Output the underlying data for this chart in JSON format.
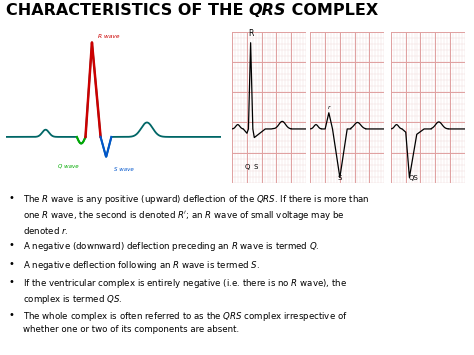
{
  "title_parts": [
    {
      "text": "CHARACTERISTICS OF THE ",
      "bold": true,
      "italic": false
    },
    {
      "text": "QRS",
      "bold": true,
      "italic": true
    },
    {
      "text": " COMPLEX",
      "bold": true,
      "italic": false
    }
  ],
  "title_fontsize": 11.5,
  "background_color": "#ffffff",
  "ecg_bg_color": "#c8f0f0",
  "grid_bg_color": "#f5dede",
  "grid_line_color": "#e0a0a0",
  "grid_minor_color": "#edd8d8",
  "ecg_main_color": "#006666",
  "ecg_r_color": "#cc0000",
  "ecg_q_color": "#00aa00",
  "ecg_s_color": "#0055cc",
  "text_color": "#333333",
  "bullet_fontsize": 6.2,
  "bullet_texts": [
    [
      "The ",
      false,
      "R",
      true,
      " wave is any positive (upward) deflection of the ",
      false,
      "QRS",
      true,
      ". If there is more than\none ",
      false,
      "R",
      true,
      " wave, the second is denoted ",
      false,
      "R",
      true,
      "'; an ",
      false,
      "R",
      true,
      " wave of small voltage may be\ndenoted ",
      false,
      "r",
      true,
      "."
    ],
    [
      "A negative (downward) deflection preceding an ",
      false,
      "R",
      true,
      " wave is termed ",
      false,
      "Q",
      true,
      "."
    ],
    [
      "A negative deflection following an ",
      false,
      "R",
      true,
      " wave is termed ",
      false,
      "S",
      true,
      "."
    ],
    [
      "If the ventricular complex is entirely negative (i.e. there is no ",
      false,
      "R",
      true,
      " wave), the\ncomplex is termed ",
      false,
      "QS",
      true,
      "."
    ],
    [
      "The whole complex is often referred to as the ",
      false,
      "QRS",
      true,
      " complex irrespective of\nwhether one or two of its components are absent."
    ]
  ]
}
